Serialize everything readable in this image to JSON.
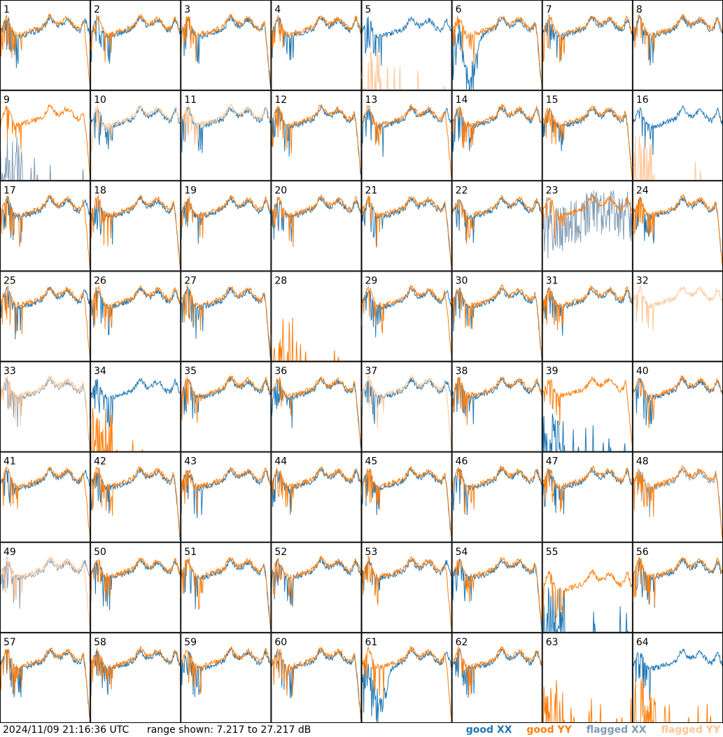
{
  "footer": {
    "timestamp": "2024/11/09 21:16:36 UTC",
    "range_text": "range shown: 7.217 to 27.217 dB"
  },
  "legend": [
    {
      "key": "good_xx",
      "label": "good XX",
      "color": "#1f77b4"
    },
    {
      "key": "good_yy",
      "label": "good YY",
      "color": "#ff7f0e"
    },
    {
      "key": "flagged_xx",
      "label": "flagged XX",
      "color": "#7f9bb4"
    },
    {
      "key": "flagged_yy",
      "label": "flagged YY",
      "color": "#ffc597"
    }
  ],
  "chart_data": {
    "type": "line",
    "title": "",
    "xlabel": "",
    "ylabel": "",
    "ylim": [
      7.217,
      27.217
    ],
    "unit": "dB",
    "grid": false,
    "rows": 8,
    "cols": 8,
    "tiles": [
      {
        "label": "1"
      },
      {
        "label": "2"
      },
      {
        "label": "3"
      },
      {
        "label": "4"
      },
      {
        "label": "5"
      },
      {
        "label": "6"
      },
      {
        "label": "7"
      },
      {
        "label": "8"
      },
      {
        "label": "9"
      },
      {
        "label": "10"
      },
      {
        "label": "11"
      },
      {
        "label": "12"
      },
      {
        "label": "13"
      },
      {
        "label": "14"
      },
      {
        "label": "15"
      },
      {
        "label": "16"
      },
      {
        "label": "17"
      },
      {
        "label": "18"
      },
      {
        "label": "19"
      },
      {
        "label": "20"
      },
      {
        "label": "21"
      },
      {
        "label": "22"
      },
      {
        "label": "23"
      },
      {
        "label": "24"
      },
      {
        "label": "25"
      },
      {
        "label": "26"
      },
      {
        "label": "27"
      },
      {
        "label": "28"
      },
      {
        "label": "29"
      },
      {
        "label": "30"
      },
      {
        "label": "31"
      },
      {
        "label": "32"
      },
      {
        "label": "33"
      },
      {
        "label": "34"
      },
      {
        "label": "35"
      },
      {
        "label": "36"
      },
      {
        "label": "37"
      },
      {
        "label": "38"
      },
      {
        "label": "39"
      },
      {
        "label": "40"
      },
      {
        "label": "41"
      },
      {
        "label": "42"
      },
      {
        "label": "43"
      },
      {
        "label": "44"
      },
      {
        "label": "45"
      },
      {
        "label": "46"
      },
      {
        "label": "47"
      },
      {
        "label": "48"
      },
      {
        "label": "49"
      },
      {
        "label": "50"
      },
      {
        "label": "51"
      },
      {
        "label": "52"
      },
      {
        "label": "53"
      },
      {
        "label": "54"
      },
      {
        "label": "55"
      },
      {
        "label": "56"
      },
      {
        "label": "57"
      },
      {
        "label": "58"
      },
      {
        "label": "59"
      },
      {
        "label": "60"
      },
      {
        "label": "61"
      },
      {
        "label": "62"
      },
      {
        "label": "63"
      },
      {
        "label": "64"
      }
    ]
  }
}
